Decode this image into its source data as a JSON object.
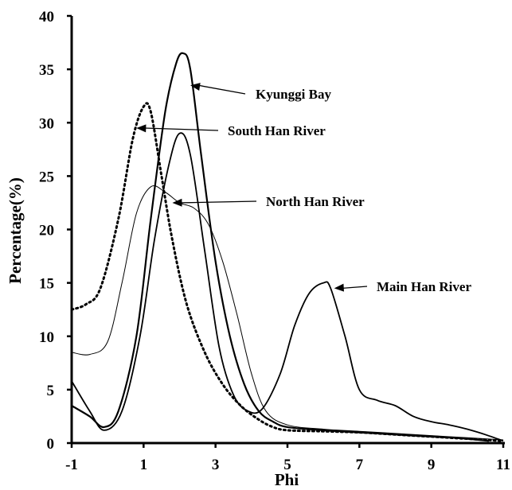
{
  "chart_data": {
    "type": "line",
    "title": "",
    "xlabel": "Phi",
    "ylabel": "Percentage(%)",
    "xlim": [
      -1,
      11
    ],
    "ylim": [
      0,
      40
    ],
    "xticks": [
      "-1",
      "1",
      "3",
      "5",
      "7",
      "9",
      "11"
    ],
    "yticks": [
      "0",
      "5",
      "10",
      "15",
      "20",
      "25",
      "30",
      "35",
      "40"
    ],
    "grid": false,
    "series": [
      {
        "name": "Kyunggi Bay",
        "style": "solid-thick",
        "x": [
          -1,
          -0.5,
          -0.1,
          0.3,
          0.8,
          1.2,
          1.6,
          1.9,
          2.1,
          2.3,
          2.6,
          3.0,
          3.4,
          3.8,
          4.2,
          4.6,
          5.0,
          6.0,
          7.0,
          8.0,
          9.0,
          10.0,
          10.6
        ],
        "y": [
          3.5,
          2.5,
          1.5,
          3.0,
          10.0,
          21.0,
          31.0,
          35.5,
          36.5,
          35.0,
          27.0,
          17.0,
          10.0,
          5.5,
          3.0,
          2.0,
          1.5,
          1.2,
          1.0,
          0.8,
          0.6,
          0.4,
          0.2
        ]
      },
      {
        "name": "South Han River",
        "style": "dotted-thick",
        "x": [
          -1,
          -0.6,
          -0.2,
          0.3,
          0.7,
          1.0,
          1.2,
          1.5,
          1.8,
          2.2,
          2.7,
          3.2,
          3.7,
          4.2,
          4.6,
          5.0,
          6.0,
          7.0,
          8.0,
          9.0,
          10.0,
          11.0
        ],
        "y": [
          12.5,
          13.0,
          14.5,
          21.0,
          28.5,
          31.5,
          31.0,
          25.0,
          19.0,
          13.0,
          8.5,
          5.5,
          3.5,
          2.2,
          1.5,
          1.2,
          1.1,
          1.0,
          0.8,
          0.6,
          0.4,
          0.2
        ]
      },
      {
        "name": "North Han River",
        "style": "solid-thin",
        "x": [
          -1,
          -0.5,
          0.0,
          0.4,
          0.8,
          1.2,
          1.6,
          2.0,
          2.4,
          2.8,
          3.2,
          3.6,
          4.0,
          4.4,
          5.0,
          6.0,
          7.0,
          8.0,
          9.0,
          10.0,
          11.0
        ],
        "y": [
          8.5,
          8.3,
          9.5,
          15.0,
          21.5,
          24.0,
          23.5,
          22.5,
          22.0,
          20.5,
          17.0,
          12.0,
          6.5,
          3.0,
          1.7,
          1.3,
          1.1,
          0.9,
          0.7,
          0.5,
          0.3
        ]
      },
      {
        "name": "Main Han River",
        "style": "solid-medium",
        "x": [
          -1,
          -0.5,
          -0.1,
          0.4,
          0.9,
          1.3,
          1.7,
          2.0,
          2.3,
          2.7,
          3.1,
          3.5,
          3.9,
          4.3,
          4.8,
          5.2,
          5.6,
          6.0,
          6.2,
          6.6,
          7.0,
          7.5,
          8.0,
          8.5,
          9.0,
          9.5,
          10.0,
          10.5,
          11.0
        ],
        "y": [
          5.8,
          3.0,
          1.2,
          3.0,
          10.0,
          19.0,
          26.0,
          29.0,
          27.0,
          18.0,
          9.0,
          4.5,
          3.0,
          3.2,
          6.5,
          11.0,
          14.0,
          15.0,
          14.5,
          10.0,
          5.0,
          4.0,
          3.5,
          2.5,
          2.0,
          1.7,
          1.3,
          0.8,
          0.2
        ]
      }
    ],
    "annotations": [
      {
        "text": "Kyunggi Bay",
        "target_x": 2.3,
        "target_y": 33.5
      },
      {
        "text": "South Han River",
        "target_x": 0.8,
        "target_y": 29.5
      },
      {
        "text": "North Han River",
        "target_x": 1.8,
        "target_y": 22.5
      },
      {
        "text": "Main Han River",
        "target_x": 6.3,
        "target_y": 14.5
      }
    ]
  }
}
